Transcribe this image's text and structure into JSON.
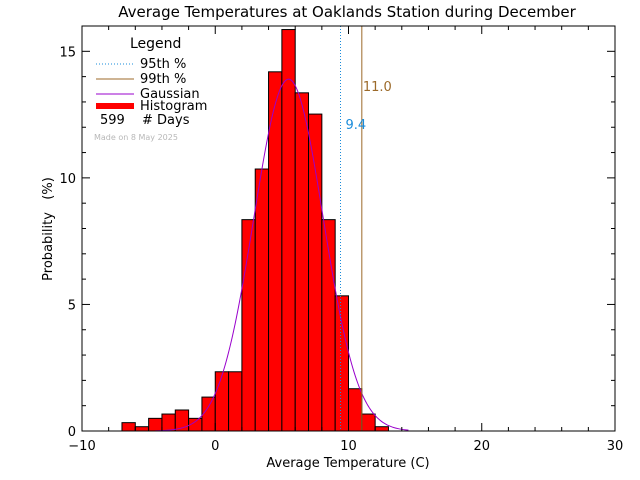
{
  "chart_data": {
    "type": "bar",
    "title": "Average Temperatures at Oaklands Station during December",
    "xlabel": "Average Temperature (C)",
    "ylabel": "Probability   (%)",
    "xlim": [
      -10,
      30
    ],
    "ylim": [
      0,
      16
    ],
    "xticks": [
      -10,
      0,
      10,
      20,
      30
    ],
    "yticks": [
      0,
      5,
      10,
      15
    ],
    "grid": false,
    "bin_width": 1,
    "histogram": {
      "name": "Histogram",
      "color": "#ff0000",
      "bins": [
        {
          "x0": -7.0,
          "value": 0.33
        },
        {
          "x0": -6.0,
          "value": 0.17
        },
        {
          "x0": -5.0,
          "value": 0.5
        },
        {
          "x0": -4.0,
          "value": 0.67
        },
        {
          "x0": -3.0,
          "value": 0.83
        },
        {
          "x0": -2.0,
          "value": 0.5
        },
        {
          "x0": -1.0,
          "value": 1.34
        },
        {
          "x0": 0.0,
          "value": 2.34
        },
        {
          "x0": 1.0,
          "value": 2.34
        },
        {
          "x0": 2.0,
          "value": 8.35
        },
        {
          "x0": 3.0,
          "value": 10.35
        },
        {
          "x0": 4.0,
          "value": 14.19
        },
        {
          "x0": 5.0,
          "value": 15.86
        },
        {
          "x0": 6.0,
          "value": 13.36
        },
        {
          "x0": 7.0,
          "value": 12.52
        },
        {
          "x0": 8.0,
          "value": 8.35
        },
        {
          "x0": 9.0,
          "value": 5.34
        },
        {
          "x0": 10.0,
          "value": 1.67
        },
        {
          "x0": 11.0,
          "value": 0.67
        },
        {
          "x0": 12.0,
          "value": 0.17
        }
      ]
    },
    "gaussian": {
      "name": "Gaussian",
      "color": "#9900cc",
      "mean": 5.5,
      "sigma": 2.6,
      "peak": 13.9,
      "x_range": [
        -4.5,
        14.5
      ]
    },
    "percentile_95": {
      "name": "95th %",
      "value": 9.4,
      "label": "9.4",
      "color": "#1a8cdb"
    },
    "percentile_99": {
      "name": "99th %",
      "value": 11.0,
      "label": "11.0",
      "color": "#9c6a2a"
    },
    "legend": {
      "title": "Legend",
      "placement": "top-left",
      "entries": [
        {
          "label": "95th %",
          "style": "dotted",
          "color": "#1a8cdb"
        },
        {
          "label": "99th %",
          "style": "solid",
          "color": "#9c6a2a"
        },
        {
          "label": "Gaussian",
          "style": "solid",
          "color": "#9900cc"
        },
        {
          "label": "Histogram",
          "style": "thick",
          "color": "#ff0000"
        }
      ],
      "days_count": "599",
      "days_label": "# Days",
      "made_on": "Made on 8 May 2025"
    }
  }
}
